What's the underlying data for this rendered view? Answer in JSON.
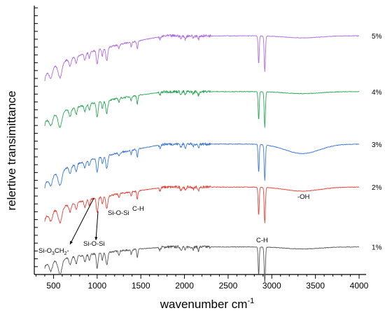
{
  "chart_data": {
    "type": "line",
    "xlabel": "wavenumber cm",
    "xlabel_sup": "-1",
    "ylabel": "relertive transimittance",
    "xlim": [
      280,
      4080
    ],
    "x_ticks": [
      500,
      1000,
      1500,
      2000,
      2500,
      3000,
      3500,
      4000
    ],
    "x_tick_labels": [
      "500",
      "1000",
      "1500",
      "2000",
      "2500",
      "3000",
      "3500",
      "4000"
    ],
    "y_ticks_shown": false,
    "grid": false,
    "legend": "none",
    "series": [
      {
        "name": "1%",
        "color": "#555555",
        "x": [
          400,
          4000
        ],
        "start_level": 10,
        "end_level": 41
      },
      {
        "name": "2%",
        "color": "#e8423a",
        "x": [
          400,
          4000
        ],
        "start_level": 79,
        "end_level": 130
      },
      {
        "name": "3%",
        "color": "#3a78d8",
        "x": [
          400,
          4000
        ],
        "start_level": 128,
        "end_level": 194
      },
      {
        "name": "4%",
        "color": "#2aa855",
        "x": [
          400,
          4000
        ],
        "start_level": 221,
        "end_level": 272
      },
      {
        "name": "5%",
        "color": "#b06ce0",
        "x": [
          400,
          4000
        ],
        "start_level": 288,
        "end_level": 355
      }
    ],
    "annotations": [
      {
        "pre": "Si-O",
        "sub": "3",
        "post": "CH",
        "sub2": "2",
        "post2": "-",
        "x": 810,
        "series": "2%"
      },
      {
        "text": "Si-O-Si",
        "x": 1000,
        "series": "2%"
      },
      {
        "text": "Si-O-Si",
        "x": 1110,
        "series": "2%"
      },
      {
        "text": "C-H",
        "x": 1460,
        "series": "2%"
      },
      {
        "text": "C-H",
        "x": 2920,
        "series": "2%"
      },
      {
        "text": "-OH",
        "x": 3400,
        "series": "2%"
      }
    ]
  }
}
